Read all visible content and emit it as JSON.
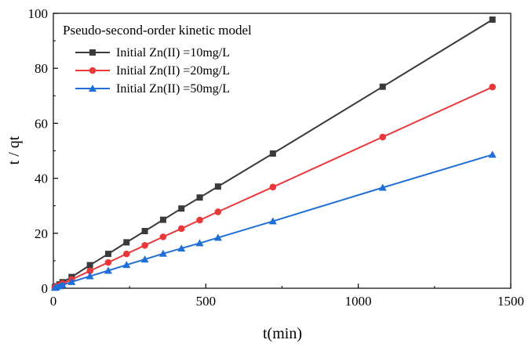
{
  "chart_data": {
    "type": "line",
    "title": "Pseudo-second-order kinetic model",
    "xlabel": "t(min)",
    "ylabel": "t / qt",
    "xlim": [
      0,
      1500
    ],
    "ylim": [
      0,
      100
    ],
    "xticks": [
      "0",
      "500",
      "1000",
      "1500"
    ],
    "yticks": [
      "0",
      "20",
      "40",
      "60",
      "80",
      "100"
    ],
    "grid": false,
    "legend_position": "top-left",
    "series": [
      {
        "name": "Initial Zn(II) =10mg/L",
        "color": "#3a3a3a",
        "marker": "square",
        "x": [
          5,
          10,
          20,
          30,
          60,
          120,
          180,
          240,
          300,
          360,
          420,
          480,
          540,
          720,
          1080,
          1440
        ],
        "y": [
          0.4,
          0.7,
          1.4,
          2.2,
          4.1,
          8.4,
          12.5,
          16.7,
          20.8,
          24.9,
          29.0,
          33.0,
          37.0,
          49.0,
          73.3,
          97.7
        ]
      },
      {
        "name": "Initial Zn(II) =20mg/L",
        "color": "#e8383b",
        "marker": "circle",
        "x": [
          5,
          10,
          20,
          30,
          60,
          120,
          180,
          240,
          300,
          360,
          420,
          480,
          540,
          720,
          1080,
          1440
        ],
        "y": [
          0.3,
          0.6,
          1.1,
          1.7,
          3.2,
          6.3,
          9.4,
          12.5,
          15.6,
          18.7,
          21.7,
          24.8,
          27.8,
          36.8,
          55.0,
          73.2
        ]
      },
      {
        "name": "Initial Zn(II) =50mg/L",
        "color": "#1f6fd6",
        "marker": "triangle",
        "x": [
          5,
          10,
          20,
          30,
          60,
          120,
          180,
          240,
          300,
          360,
          420,
          480,
          540,
          720,
          1080,
          1440
        ],
        "y": [
          0.2,
          0.4,
          0.8,
          1.2,
          2.3,
          4.4,
          6.4,
          8.5,
          10.5,
          12.6,
          14.5,
          16.4,
          18.4,
          24.4,
          36.6,
          48.6
        ]
      }
    ]
  }
}
